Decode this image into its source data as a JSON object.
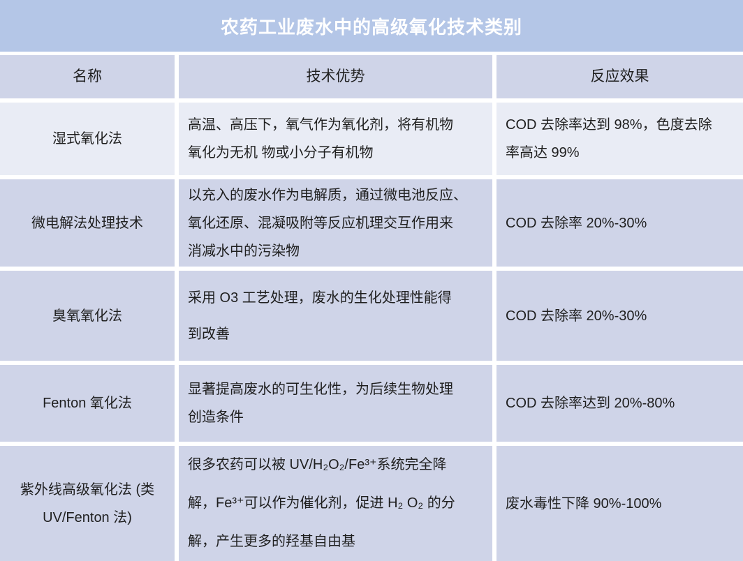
{
  "table": {
    "title": "农药工业废水中的高级氧化技术类别",
    "columns": [
      "名称",
      "技术优势",
      "反应效果"
    ],
    "rows": [
      {
        "name": "湿式氧化法",
        "advantage": "高温、高压下，氧气作为氧化剂，将有机物\n氧化为无机 物或小分子有机物",
        "effect": "COD 去除率达到 98%，色度去除\n率高达 99%"
      },
      {
        "name": "微电解法处理技术",
        "advantage": "以充入的废水作为电解质，通过微电池反应、\n氧化还原、混凝吸附等反应机理交互作用来\n消减水中的污染物",
        "effect": "COD 去除率 20%-30%"
      },
      {
        "name": "臭氧氧化法",
        "advantage": "采用 O3 工艺处理，废水的生化处理性能得\n到改善",
        "effect": "COD 去除率 20%-30%"
      },
      {
        "name": "Fenton 氧化法",
        "advantage": "显著提高废水的可生化性，为后续生物处理\n创造条件",
        "effect": "COD 去除率达到 20%-80%"
      },
      {
        "name": "紫外线高级氧化法 (类\nUV/Fenton 法)",
        "advantage": "很多农药可以被 UV/H₂O₂/Fe³⁺系统完全降\n解，Fe³⁺可以作为催化剂，促进 H₂ O₂ 的分\n解，产生更多的羟基自由基",
        "effect": "废水毒性下降 90%-100%"
      }
    ]
  },
  "colors": {
    "title_bar_bg": "#b4c6e7",
    "title_text": "#ffffff",
    "header_bg": "#cfd4e8",
    "row_bg": "#cfd4e8",
    "row_alt_bg": "#e9ecf5",
    "grid_gap": "#ffffff",
    "body_text": "#1f1f1f"
  }
}
